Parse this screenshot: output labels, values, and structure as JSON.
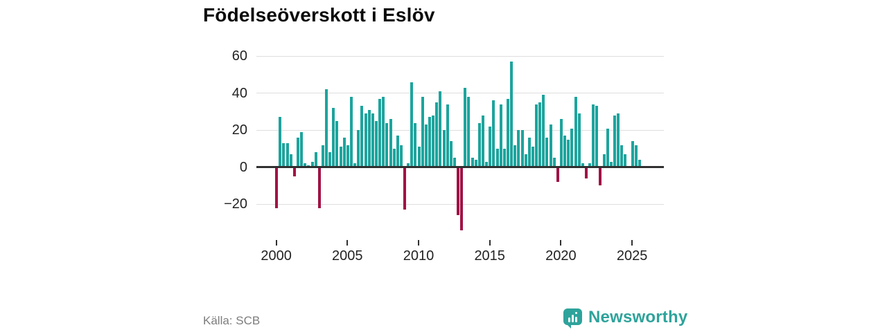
{
  "title": "Födelseöverskott i Eslöv",
  "source": "Källa: SCB",
  "branding": {
    "name": "Newsworthy",
    "color": "#2ea39b"
  },
  "colors": {
    "positive_bar": "#1da49d",
    "negative_bar": "#a11245",
    "gridline": "#dedede",
    "zero_line": "#303030",
    "tick_text": "#232323",
    "source_text": "#7d7d7d"
  },
  "chart_data": {
    "type": "bar",
    "title": "Födelseöverskott i Eslöv",
    "xlabel": "",
    "ylabel": "",
    "frequency": "quarterly",
    "start_period": "2000Q1",
    "end_period": "2025Q4",
    "grid": "horizontal",
    "legend": "none",
    "ylim": [
      -40,
      65
    ],
    "y_ticks": [
      60,
      40,
      20,
      0,
      -20
    ],
    "y_tick_labels": [
      "60",
      "40",
      "20",
      "0",
      "−20"
    ],
    "x_tick_years": [
      2000,
      2005,
      2010,
      2015,
      2020,
      2025
    ],
    "x_tick_labels": [
      "2000",
      "2005",
      "2010",
      "2015",
      "2020",
      "2025"
    ],
    "series": [
      {
        "name": "Födelseöverskott",
        "values": [
          -22,
          27,
          13,
          13,
          7,
          -5,
          16,
          19,
          2,
          1,
          3,
          8,
          -22,
          12,
          42,
          8,
          32,
          25,
          11,
          16,
          12,
          38,
          2,
          20,
          33,
          29,
          31,
          29,
          25,
          37,
          38,
          24,
          26,
          10,
          17,
          12,
          -23,
          2,
          46,
          24,
          11,
          38,
          23,
          27,
          28,
          35,
          41,
          20,
          34,
          14,
          5,
          -26,
          -34,
          43,
          38,
          5,
          4,
          24,
          28,
          3,
          22,
          36,
          10,
          34,
          10,
          37,
          57,
          12,
          20,
          20,
          7,
          16,
          11,
          34,
          35,
          39,
          16,
          23,
          5,
          -8,
          26,
          17,
          15,
          21,
          38,
          29,
          2,
          -6,
          2,
          34,
          33,
          -10,
          7,
          21,
          3,
          28,
          29,
          12,
          7,
          0,
          14,
          12,
          4,
          0
        ]
      }
    ]
  }
}
